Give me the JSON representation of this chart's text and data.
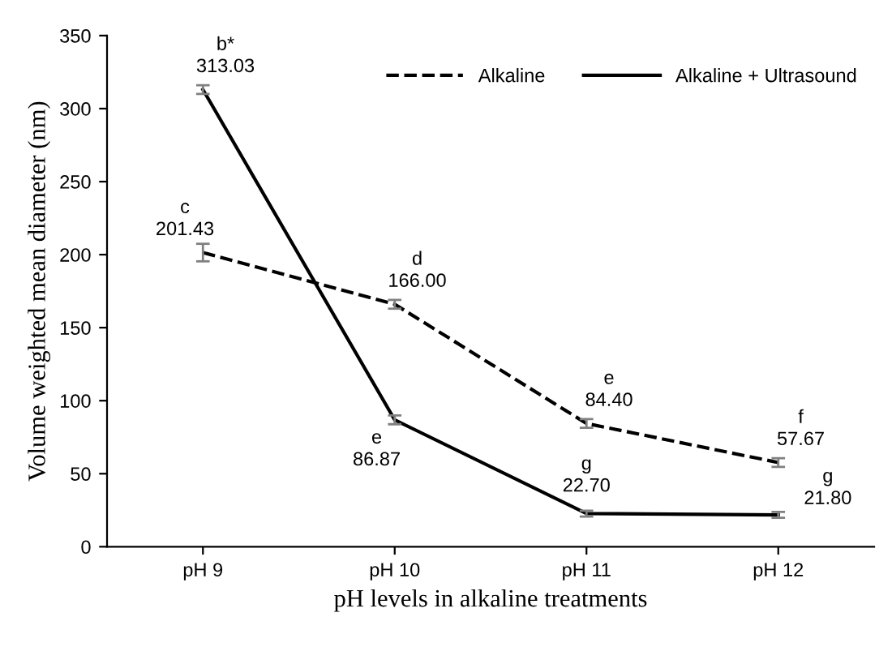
{
  "chart_data": {
    "type": "line",
    "xlabel": "pH levels in alkaline treatments",
    "ylabel": "Volume weighted mean diameter (nm)",
    "categories": [
      "pH 9",
      "pH 10",
      "pH 11",
      "pH 12"
    ],
    "series": [
      {
        "name": "Alkaline",
        "color": "#000000",
        "line_style": "dashed",
        "values": [
          201.43,
          166.0,
          84.4,
          57.67
        ],
        "errors": [
          6,
          3,
          3,
          3
        ],
        "value_labels": [
          "c\n201.43",
          "d\n166.00",
          "e\n84.40",
          "f\n57.67"
        ]
      },
      {
        "name": "Alkaline + Ultrasound",
        "color": "#000000",
        "line_style": "solid",
        "values": [
          313.03,
          86.87,
          22.7,
          21.8
        ],
        "errors": [
          3,
          3,
          2,
          2
        ],
        "value_labels": [
          "b*\n313.03",
          "e\n86.87",
          "g\n22.70",
          "g\n21.80"
        ]
      }
    ],
    "ylim": [
      0,
      350
    ],
    "yticks": [
      0,
      50,
      100,
      150,
      200,
      250,
      300,
      350
    ],
    "grid": false,
    "legend": "top right",
    "marker": "none"
  }
}
